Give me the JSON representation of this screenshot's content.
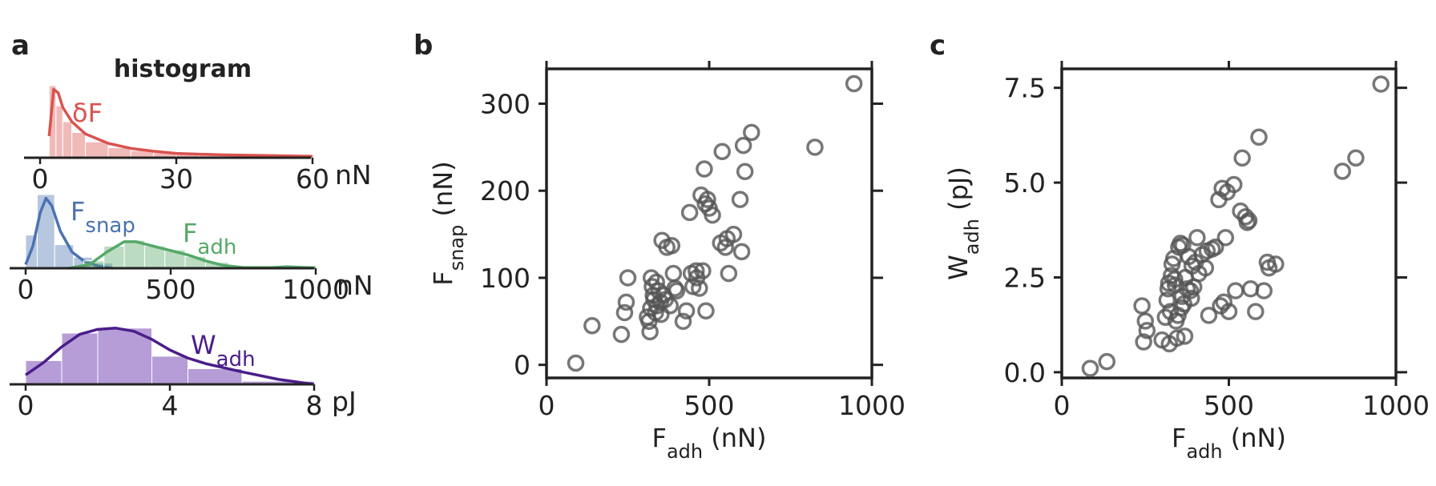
{
  "panels": {
    "a": {
      "label": "a",
      "title": "histogram",
      "rows": [
        {
          "unit": "nN",
          "xlim": [
            0,
            60
          ],
          "ticks": [
            "0",
            "30",
            "60"
          ],
          "series": [
            {
              "name": "δF",
              "color": "#d9534f",
              "bins": [
                [
                  2,
                  3.5,
                  1.0
                ],
                [
                  3.5,
                  5,
                  0.72
                ],
                [
                  5,
                  7,
                  0.5
                ],
                [
                  7,
                  10,
                  0.35
                ],
                [
                  10,
                  15,
                  0.22
                ],
                [
                  15,
                  20,
                  0.14
                ],
                [
                  20,
                  25,
                  0.1
                ],
                [
                  25,
                  30,
                  0.07
                ],
                [
                  30,
                  35,
                  0.05
                ],
                [
                  35,
                  40,
                  0.04
                ],
                [
                  40,
                  45,
                  0.03
                ],
                [
                  45,
                  50,
                  0.025
                ],
                [
                  50,
                  55,
                  0.02
                ],
                [
                  55,
                  60,
                  0.02
                ]
              ],
              "kde": [
                [
                  2,
                  0.3
                ],
                [
                  3,
                  0.95
                ],
                [
                  4,
                  0.9
                ],
                [
                  5,
                  0.7
                ],
                [
                  7,
                  0.5
                ],
                [
                  10,
                  0.33
                ],
                [
                  15,
                  0.2
                ],
                [
                  20,
                  0.13
                ],
                [
                  25,
                  0.09
                ],
                [
                  30,
                  0.06
                ],
                [
                  40,
                  0.04
                ],
                [
                  50,
                  0.03
                ],
                [
                  60,
                  0.02
                ]
              ]
            }
          ]
        },
        {
          "unit": "nN",
          "xlim": [
            0,
            1000
          ],
          "ticks": [
            "0",
            "500",
            "1000"
          ],
          "series": [
            {
              "name": "F",
              "sub": "snap",
              "color": "#4c72b0",
              "bins": [
                [
                  0,
                  40,
                  0.45
                ],
                [
                  40,
                  100,
                  1.0
                ],
                [
                  100,
                  165,
                  0.32
                ],
                [
                  165,
                  230,
                  0.15
                ],
                [
                  230,
                  300,
                  0.07
                ]
              ],
              "kde": [
                [
                  0,
                  0.05
                ],
                [
                  25,
                  0.3
                ],
                [
                  50,
                  0.75
                ],
                [
                  70,
                  0.95
                ],
                [
                  90,
                  0.85
                ],
                [
                  120,
                  0.5
                ],
                [
                  160,
                  0.22
                ],
                [
                  200,
                  0.1
                ],
                [
                  250,
                  0.03
                ],
                [
                  300,
                  0.0
                ]
              ]
            },
            {
              "name": "F",
              "sub": "adh",
              "color": "#55a868",
              "bins": [
                [
                  200,
                  270,
                  0.1
                ],
                [
                  270,
                  340,
                  0.3
                ],
                [
                  340,
                  410,
                  0.38
                ],
                [
                  410,
                  480,
                  0.3
                ],
                [
                  480,
                  550,
                  0.25
                ],
                [
                  550,
                  620,
                  0.16
                ],
                [
                  620,
                  700,
                  0.08
                ],
                [
                  700,
                  780,
                  0.03
                ],
                [
                  780,
                  860,
                  0.02
                ],
                [
                  860,
                  950,
                  0.02
                ],
                [
                  950,
                  1000,
                  0.01
                ]
              ],
              "kde": [
                [
                  150,
                  0.0
                ],
                [
                  220,
                  0.05
                ],
                [
                  280,
                  0.22
                ],
                [
                  340,
                  0.36
                ],
                [
                  380,
                  0.36
                ],
                [
                  440,
                  0.3
                ],
                [
                  500,
                  0.24
                ],
                [
                  560,
                  0.18
                ],
                [
                  620,
                  0.1
                ],
                [
                  680,
                  0.04
                ],
                [
                  750,
                  0.01
                ],
                [
                  850,
                  0.01
                ],
                [
                  900,
                  0.02
                ],
                [
                  1000,
                  0.005
                ]
              ]
            }
          ]
        },
        {
          "unit": "pJ",
          "xlim": [
            0,
            8
          ],
          "ticks": [
            "0",
            "4",
            "8"
          ],
          "series": [
            {
              "name": "W",
              "sub": "adh",
              "color": "#4b1e8a",
              "fill": "#a98cd1",
              "bins": [
                [
                  0,
                  1,
                  0.38
                ],
                [
                  1,
                  2,
                  0.82
                ],
                [
                  2,
                  3.5,
                  0.9
                ],
                [
                  3.5,
                  4.5,
                  0.45
                ],
                [
                  4.5,
                  6,
                  0.25
                ],
                [
                  6,
                  8,
                  0.05
                ]
              ],
              "kde": [
                [
                  0,
                  0.15
                ],
                [
                  0.5,
                  0.35
                ],
                [
                  1,
                  0.6
                ],
                [
                  1.5,
                  0.8
                ],
                [
                  2,
                  0.88
                ],
                [
                  2.5,
                  0.9
                ],
                [
                  3,
                  0.85
                ],
                [
                  3.5,
                  0.72
                ],
                [
                  4,
                  0.55
                ],
                [
                  4.5,
                  0.42
                ],
                [
                  5,
                  0.33
                ],
                [
                  6,
                  0.2
                ],
                [
                  7,
                  0.08
                ],
                [
                  8,
                  0.0
                ]
              ]
            }
          ]
        }
      ]
    },
    "b": {
      "label": "b",
      "xlabel": "F",
      "xlabel_sub": "adh",
      "xlabel_unit": " (nN)",
      "ylabel": "F",
      "ylabel_sub": "snap",
      "ylabel_unit": " (nN)",
      "xticks": [
        "0",
        "500",
        "1000"
      ],
      "yticks": [
        "0",
        "100",
        "200",
        "300"
      ]
    },
    "c": {
      "label": "c",
      "xlabel": "F",
      "xlabel_sub": "adh",
      "xlabel_unit": " (nN)",
      "ylabel": "W",
      "ylabel_sub": "adh",
      "ylabel_unit": " (pJ)",
      "xticks": [
        "0",
        "500",
        "1000"
      ],
      "yticks": [
        "0.0",
        "2.5",
        "5.0",
        "7.5"
      ]
    }
  },
  "chart_data": [
    {
      "type": "bar",
      "title": "histogram",
      "series": [
        {
          "name": "δF",
          "unit": "nN",
          "xlim": [
            0,
            60
          ]
        },
        {
          "name": "Fsnap",
          "unit": "nN",
          "xlim": [
            0,
            1000
          ]
        },
        {
          "name": "Fadh",
          "unit": "nN",
          "xlim": [
            0,
            1000
          ]
        },
        {
          "name": "Wadh",
          "unit": "pJ",
          "xlim": [
            0,
            8
          ]
        }
      ]
    },
    {
      "type": "scatter",
      "xlabel": "Fadh (nN)",
      "ylabel": "Fsnap (nN)",
      "xlim": [
        0,
        1000
      ],
      "ylim": [
        -15,
        340
      ],
      "grid": false,
      "marker_color": "#555555",
      "points": [
        [
          90,
          2
        ],
        [
          140,
          45
        ],
        [
          230,
          35
        ],
        [
          240,
          60
        ],
        [
          245,
          72
        ],
        [
          250,
          100
        ],
        [
          310,
          55
        ],
        [
          315,
          50
        ],
        [
          318,
          38
        ],
        [
          320,
          65
        ],
        [
          322,
          100
        ],
        [
          325,
          90
        ],
        [
          328,
          80
        ],
        [
          330,
          75
        ],
        [
          335,
          60
        ],
        [
          338,
          95
        ],
        [
          340,
          68
        ],
        [
          345,
          85
        ],
        [
          350,
          72
        ],
        [
          352,
          58
        ],
        [
          355,
          143
        ],
        [
          360,
          80
        ],
        [
          365,
          75
        ],
        [
          370,
          135
        ],
        [
          380,
          68
        ],
        [
          385,
          137
        ],
        [
          390,
          105
        ],
        [
          395,
          88
        ],
        [
          400,
          85
        ],
        [
          420,
          50
        ],
        [
          430,
          62
        ],
        [
          440,
          175
        ],
        [
          445,
          105
        ],
        [
          450,
          90
        ],
        [
          460,
          108
        ],
        [
          462,
          100
        ],
        [
          470,
          88
        ],
        [
          475,
          195
        ],
        [
          480,
          108
        ],
        [
          485,
          225
        ],
        [
          488,
          185
        ],
        [
          490,
          62
        ],
        [
          495,
          190
        ],
        [
          500,
          180
        ],
        [
          510,
          172
        ],
        [
          535,
          140
        ],
        [
          540,
          245
        ],
        [
          550,
          135
        ],
        [
          555,
          145
        ],
        [
          560,
          105
        ],
        [
          575,
          150
        ],
        [
          595,
          190
        ],
        [
          600,
          130
        ],
        [
          605,
          252
        ],
        [
          610,
          222
        ],
        [
          630,
          267
        ],
        [
          825,
          250
        ],
        [
          945,
          323
        ]
      ]
    },
    {
      "type": "scatter",
      "xlabel": "Fadh (nN)",
      "ylabel": "Wadh (pJ)",
      "xlim": [
        0,
        1000
      ],
      "ylim": [
        -0.15,
        8.0
      ],
      "grid": false,
      "marker_color": "#555555",
      "points": [
        [
          85,
          0.1
        ],
        [
          135,
          0.28
        ],
        [
          240,
          1.75
        ],
        [
          245,
          0.8
        ],
        [
          250,
          1.35
        ],
        [
          255,
          1.1
        ],
        [
          300,
          0.85
        ],
        [
          310,
          1.45
        ],
        [
          315,
          1.9
        ],
        [
          318,
          2.2
        ],
        [
          320,
          2.35
        ],
        [
          322,
          0.75
        ],
        [
          325,
          1.6
        ],
        [
          328,
          2.55
        ],
        [
          330,
          2.85
        ],
        [
          335,
          3.0
        ],
        [
          338,
          2.45
        ],
        [
          340,
          2.3
        ],
        [
          342,
          1.35
        ],
        [
          345,
          0.9
        ],
        [
          348,
          1.5
        ],
        [
          350,
          3.3
        ],
        [
          355,
          3.4
        ],
        [
          358,
          1.7
        ],
        [
          360,
          2.0
        ],
        [
          362,
          3.35
        ],
        [
          365,
          1.8
        ],
        [
          368,
          0.95
        ],
        [
          370,
          2.5
        ],
        [
          375,
          2.2
        ],
        [
          380,
          3.05
        ],
        [
          385,
          2.15
        ],
        [
          388,
          1.95
        ],
        [
          390,
          2.8
        ],
        [
          395,
          2.25
        ],
        [
          400,
          2.9
        ],
        [
          405,
          3.55
        ],
        [
          410,
          2.6
        ],
        [
          420,
          3.1
        ],
        [
          430,
          2.75
        ],
        [
          435,
          3.2
        ],
        [
          440,
          1.5
        ],
        [
          450,
          3.25
        ],
        [
          460,
          3.3
        ],
        [
          470,
          4.55
        ],
        [
          475,
          1.75
        ],
        [
          480,
          4.85
        ],
        [
          485,
          1.85
        ],
        [
          490,
          3.55
        ],
        [
          495,
          4.75
        ],
        [
          500,
          1.6
        ],
        [
          515,
          4.95
        ],
        [
          520,
          2.15
        ],
        [
          535,
          4.25
        ],
        [
          540,
          5.65
        ],
        [
          550,
          4.1
        ],
        [
          555,
          3.95
        ],
        [
          560,
          4.0
        ],
        [
          565,
          2.2
        ],
        [
          580,
          1.6
        ],
        [
          590,
          6.2
        ],
        [
          605,
          2.15
        ],
        [
          615,
          2.9
        ],
        [
          620,
          2.75
        ],
        [
          640,
          2.85
        ],
        [
          840,
          5.3
        ],
        [
          880,
          5.65
        ],
        [
          955,
          7.6
        ]
      ]
    }
  ]
}
